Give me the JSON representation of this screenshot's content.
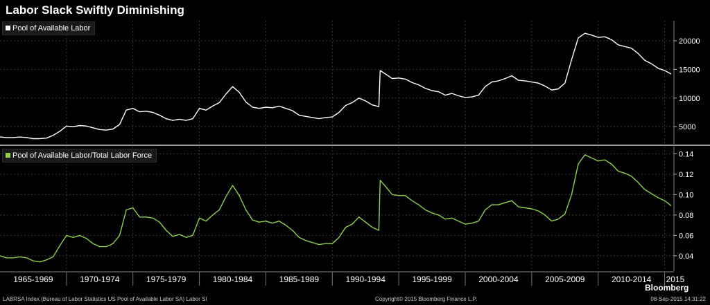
{
  "title": "Labor Slack Swiftly Diminishing",
  "legend_top": {
    "label": "Pool of Available Labor",
    "color": "#ffffff"
  },
  "legend_bottom": {
    "label": "Pool of Available Labor/Total Labor Force",
    "color": "#8fd14f"
  },
  "footer": {
    "source": "LABRSA Index (Bureau of Labor Statistics US Pool of Available Labor SA) Labor Sl",
    "copyright": "Copyright© 2015 Bloomberg Finance L.P.",
    "date": "08-Sep-2015 14:31:22",
    "brand": "Bloomberg"
  },
  "chart_data": [
    {
      "type": "line",
      "title": "",
      "xlim": [
        1965,
        2015.7
      ],
      "ylim": [
        2000,
        23500
      ],
      "yticks": [
        5000,
        10000,
        15000,
        20000
      ],
      "series": [
        {
          "name": "Pool of Available Labor",
          "color": "#ffffff",
          "x": [
            1965.0,
            1965.5,
            1966.0,
            1966.5,
            1967.0,
            1967.5,
            1968.0,
            1968.5,
            1969.0,
            1969.5,
            1970.0,
            1970.5,
            1971.0,
            1971.5,
            1972.0,
            1972.5,
            1973.0,
            1973.5,
            1974.0,
            1974.5,
            1975.0,
            1975.5,
            1976.0,
            1976.5,
            1977.0,
            1977.5,
            1978.0,
            1978.5,
            1979.0,
            1979.5,
            1980.0,
            1980.5,
            1981.0,
            1981.5,
            1982.0,
            1982.5,
            1983.0,
            1983.5,
            1984.0,
            1984.5,
            1985.0,
            1985.5,
            1986.0,
            1986.5,
            1987.0,
            1987.5,
            1988.0,
            1988.5,
            1989.0,
            1989.5,
            1990.0,
            1990.5,
            1991.0,
            1991.5,
            1992.0,
            1992.5,
            1993.0,
            1993.5,
            1993.6,
            1994.0,
            1994.5,
            1995.0,
            1995.5,
            1996.0,
            1996.5,
            1997.0,
            1997.5,
            1998.0,
            1998.5,
            1999.0,
            1999.5,
            2000.0,
            2000.5,
            2001.0,
            2001.5,
            2002.0,
            2002.5,
            2003.0,
            2003.5,
            2004.0,
            2004.5,
            2005.0,
            2005.5,
            2006.0,
            2006.5,
            2007.0,
            2007.5,
            2008.0,
            2008.5,
            2009.0,
            2009.5,
            2010.0,
            2010.5,
            2011.0,
            2011.5,
            2012.0,
            2012.5,
            2013.0,
            2013.5,
            2014.0,
            2014.5,
            2015.0,
            2015.5
          ],
          "y": [
            3200,
            3100,
            3100,
            3200,
            3100,
            2900,
            2900,
            3000,
            3500,
            4200,
            5100,
            5000,
            5200,
            5100,
            4800,
            4500,
            4400,
            4600,
            5400,
            7900,
            8200,
            7600,
            7700,
            7500,
            7000,
            6400,
            6100,
            6300,
            6100,
            6400,
            8200,
            7900,
            8600,
            9200,
            10700,
            12000,
            11000,
            9300,
            8400,
            8200,
            8400,
            8300,
            8600,
            8200,
            7800,
            7000,
            6800,
            6600,
            6400,
            6600,
            6700,
            7500,
            8700,
            9200,
            10000,
            9500,
            8800,
            8500,
            14800,
            14200,
            13400,
            13500,
            13300,
            12700,
            12300,
            11700,
            11300,
            11100,
            10500,
            10800,
            10400,
            10100,
            10200,
            10500,
            12000,
            12800,
            13000,
            13400,
            13900,
            13100,
            13000,
            12800,
            12600,
            12100,
            11400,
            11600,
            12600,
            16700,
            20500,
            21300,
            21000,
            20600,
            20700,
            20200,
            19300,
            19000,
            18700,
            17800,
            16600,
            16000,
            15200,
            14800,
            14200
          ]
        }
      ]
    },
    {
      "type": "line",
      "title": "",
      "xlabel": "",
      "xlim": [
        1965,
        2015.7
      ],
      "ylim": [
        0.025,
        0.147
      ],
      "yticks": [
        0.04,
        0.06,
        0.08,
        0.1,
        0.12,
        0.14
      ],
      "ytick_labels": [
        "0.04",
        "0.06",
        "0.08",
        "0.10",
        "0.12",
        "0.14"
      ],
      "xticks": [
        1970,
        1975,
        1980,
        1985,
        1990,
        1995,
        2000,
        2005,
        2010,
        2015
      ],
      "period_labels": [
        "1965-1969",
        "1970-1974",
        "1975-1979",
        "1980-1984",
        "1985-1989",
        "1990-1994",
        "1995-1999",
        "2000-2004",
        "2005-2009",
        "2010-2014",
        "2015"
      ],
      "series": [
        {
          "name": "Pool of Available Labor/Total Labor Force",
          "color": "#8fd14f",
          "x": [
            1965.0,
            1965.5,
            1966.0,
            1966.5,
            1967.0,
            1967.5,
            1968.0,
            1968.5,
            1969.0,
            1969.5,
            1970.0,
            1970.5,
            1971.0,
            1971.5,
            1972.0,
            1972.5,
            1973.0,
            1973.5,
            1974.0,
            1974.5,
            1975.0,
            1975.5,
            1976.0,
            1976.5,
            1977.0,
            1977.5,
            1978.0,
            1978.5,
            1979.0,
            1979.5,
            1980.0,
            1980.5,
            1981.0,
            1981.5,
            1982.0,
            1982.5,
            1983.0,
            1983.5,
            1984.0,
            1984.5,
            1985.0,
            1985.5,
            1986.0,
            1986.5,
            1987.0,
            1987.5,
            1988.0,
            1988.5,
            1989.0,
            1989.5,
            1990.0,
            1990.5,
            1991.0,
            1991.5,
            1992.0,
            1992.5,
            1993.0,
            1993.5,
            1993.6,
            1994.0,
            1994.5,
            1995.0,
            1995.5,
            1996.0,
            1996.5,
            1997.0,
            1997.5,
            1998.0,
            1998.5,
            1999.0,
            1999.5,
            2000.0,
            2000.5,
            2001.0,
            2001.5,
            2002.0,
            2002.5,
            2003.0,
            2003.5,
            2004.0,
            2004.5,
            2005.0,
            2005.5,
            2006.0,
            2006.5,
            2007.0,
            2007.5,
            2008.0,
            2008.5,
            2009.0,
            2009.5,
            2010.0,
            2010.5,
            2011.0,
            2011.5,
            2012.0,
            2012.5,
            2013.0,
            2013.5,
            2014.0,
            2014.5,
            2015.0,
            2015.5
          ],
          "y": [
            0.04,
            0.038,
            0.038,
            0.039,
            0.038,
            0.035,
            0.034,
            0.036,
            0.039,
            0.05,
            0.06,
            0.058,
            0.06,
            0.057,
            0.052,
            0.049,
            0.049,
            0.052,
            0.06,
            0.085,
            0.087,
            0.078,
            0.078,
            0.077,
            0.073,
            0.065,
            0.059,
            0.061,
            0.058,
            0.06,
            0.077,
            0.074,
            0.08,
            0.085,
            0.098,
            0.109,
            0.099,
            0.085,
            0.075,
            0.073,
            0.074,
            0.072,
            0.074,
            0.07,
            0.065,
            0.058,
            0.055,
            0.053,
            0.051,
            0.052,
            0.052,
            0.058,
            0.068,
            0.071,
            0.078,
            0.073,
            0.068,
            0.065,
            0.114,
            0.108,
            0.1,
            0.099,
            0.099,
            0.094,
            0.09,
            0.085,
            0.082,
            0.08,
            0.076,
            0.077,
            0.074,
            0.071,
            0.072,
            0.074,
            0.085,
            0.09,
            0.09,
            0.092,
            0.094,
            0.088,
            0.087,
            0.086,
            0.084,
            0.08,
            0.074,
            0.076,
            0.081,
            0.1,
            0.13,
            0.139,
            0.136,
            0.133,
            0.134,
            0.13,
            0.123,
            0.121,
            0.118,
            0.112,
            0.105,
            0.101,
            0.097,
            0.094,
            0.089
          ]
        }
      ]
    }
  ]
}
